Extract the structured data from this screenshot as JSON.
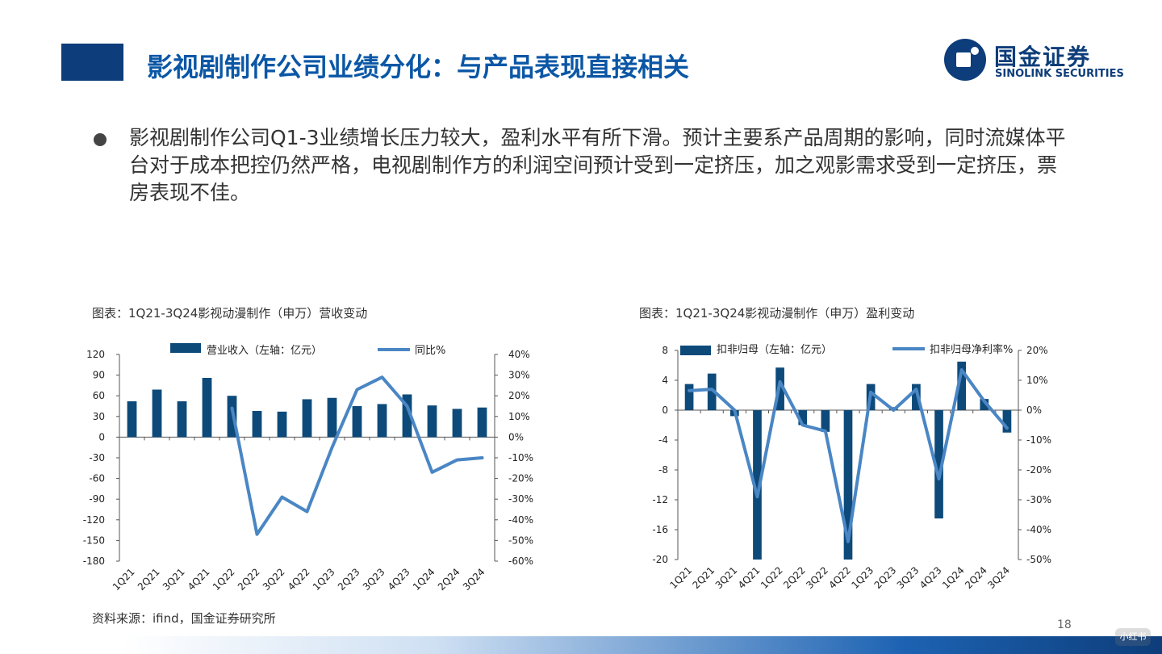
{
  "title": "影视剧制作公司业绩分化：与产品表现直接相关",
  "logo": {
    "cn": "国金证券",
    "en": "SINOLINK SECURITIES"
  },
  "bullet": "影视剧制作公司Q1-3业绩增长压力较大，盈利水平有所下滑。预计主要系产品周期的影响，同时流媒体平台对于成本把控仍然严格，电视剧制作方的利润空间预计受到一定挤压，加之观影需求受到一定挤压，票房表现不佳。",
  "source": "资料来源：ifind，国金证券研究所",
  "page_number": "18",
  "watermark": "小红书",
  "colors": {
    "title": "#0b57a6",
    "bar": "#0d4a7a",
    "line": "#4a86c4",
    "dark_blue": "#0d3d7a"
  },
  "chart_data": [
    {
      "type": "bar",
      "title": "图表：1Q21-3Q24影视动漫制作（申万）营收变动",
      "categories": [
        "1Q21",
        "2Q21",
        "3Q21",
        "4Q21",
        "1Q22",
        "2Q22",
        "3Q22",
        "4Q22",
        "1Q23",
        "2Q23",
        "3Q23",
        "4Q23",
        "1Q24",
        "2Q24",
        "3Q24"
      ],
      "series": [
        {
          "name": "营业收入（左轴：亿元）",
          "type": "bar",
          "axis": "left",
          "values": [
            52,
            69,
            52,
            86,
            60,
            38,
            37,
            55,
            57,
            45,
            48,
            62,
            46,
            41,
            43
          ]
        },
        {
          "name": "同比%",
          "type": "line",
          "axis": "right",
          "values": [
            null,
            null,
            null,
            null,
            14,
            -47,
            -29,
            -36,
            -5,
            23,
            29,
            15,
            -17,
            -11,
            -10
          ]
        }
      ],
      "left_axis": {
        "range": [
          -180,
          120
        ],
        "ticks": [
          "120",
          "90",
          "60",
          "30",
          "0",
          "-30",
          "-60",
          "-90",
          "-120",
          "-150",
          "-180"
        ]
      },
      "right_axis": {
        "range": [
          -60,
          40
        ],
        "ticks": [
          "40%",
          "30%",
          "20%",
          "10%",
          "0%",
          "-10%",
          "-20%",
          "-30%",
          "-40%",
          "-50%",
          "-60%"
        ]
      },
      "legend": "top"
    },
    {
      "type": "bar",
      "title": "图表：1Q21-3Q24影视动漫制作（申万）盈利变动",
      "categories": [
        "1Q21",
        "2Q21",
        "3Q21",
        "4Q21",
        "1Q22",
        "2Q22",
        "3Q22",
        "4Q22",
        "1Q23",
        "2Q23",
        "3Q23",
        "4Q23",
        "1Q24",
        "2Q24",
        "3Q24"
      ],
      "series": [
        {
          "name": "扣非归母（左轴：亿元）",
          "type": "bar",
          "axis": "left",
          "values": [
            3.5,
            4.9,
            -0.8,
            -20,
            5.7,
            -2,
            -2.9,
            -20,
            3.5,
            0.4,
            3.5,
            -14.5,
            6.5,
            1.5,
            -3
          ]
        },
        {
          "name": "扣非归母净利率%",
          "type": "line",
          "axis": "right",
          "values": [
            6.5,
            7,
            0,
            -29,
            9.5,
            -5,
            -7,
            -44,
            6,
            0,
            7,
            -23,
            13.5,
            3,
            -6
          ]
        }
      ],
      "left_axis": {
        "range": [
          -20,
          8
        ],
        "ticks": [
          "8",
          "4",
          "0",
          "-4",
          "-8",
          "-12",
          "-16",
          "-20"
        ]
      },
      "right_axis": {
        "range": [
          -50,
          20
        ],
        "ticks": [
          "20%",
          "10%",
          "0%",
          "-10%",
          "-20%",
          "-30%",
          "-40%",
          "-50%"
        ]
      },
      "legend": "top"
    }
  ]
}
